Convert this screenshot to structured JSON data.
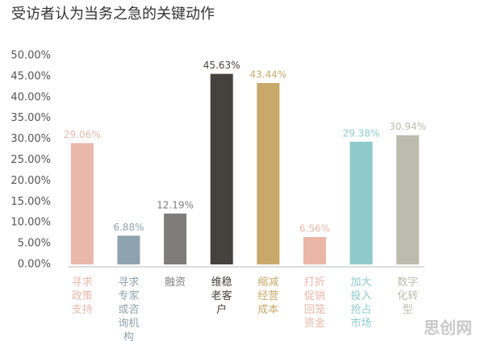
{
  "chart_data": {
    "type": "bar",
    "title": "受访者认为当务之急的关键动作",
    "categories": [
      "寻求政策支持",
      "寻求专家或咨询机构",
      "融资",
      "维稳老客户",
      "缩减经营成本",
      "打折促销回笼资金",
      "加大投入抢占市场",
      "数字化转型"
    ],
    "values": [
      29.06,
      6.88,
      12.19,
      45.63,
      43.44,
      6.56,
      29.38,
      30.94
    ],
    "value_labels": [
      "29.06%",
      "6.88%",
      "12.19%",
      "45.63%",
      "43.44%",
      "6.56%",
      "29.38%",
      "30.94%"
    ],
    "colors": [
      "#e8b9ab",
      "#8fa3ae",
      "#7f7d7c",
      "#45413d",
      "#c9a96a",
      "#eab6a7",
      "#8ec9cc",
      "#bcbcae"
    ],
    "ylim": [
      0,
      50
    ],
    "yticks": [
      {
        "value": 0,
        "label": "0.00%"
      },
      {
        "value": 5,
        "label": "5.00%"
      },
      {
        "value": 10,
        "label": "10.00%"
      },
      {
        "value": 15,
        "label": "15.00%"
      },
      {
        "value": 20,
        "label": "20.00%"
      },
      {
        "value": 25,
        "label": "25.00%"
      },
      {
        "value": 30,
        "label": "30.00%"
      },
      {
        "value": 35,
        "label": "35.00%"
      },
      {
        "value": 40,
        "label": "40.00%"
      },
      {
        "value": 45,
        "label": "45.00%"
      },
      {
        "value": 50,
        "label": "50.00%"
      }
    ],
    "grid": false,
    "watermark": "思创网"
  }
}
